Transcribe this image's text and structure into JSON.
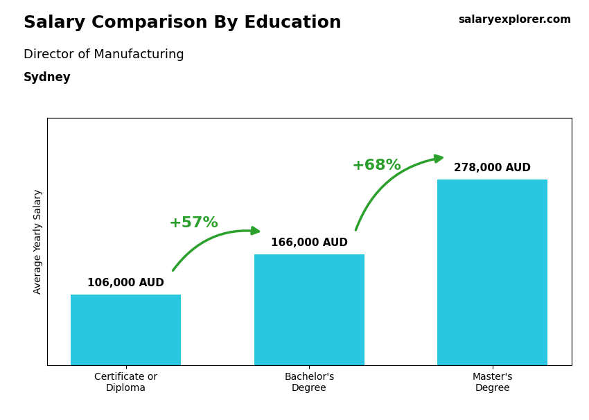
{
  "chart_data": {
    "type": "bar",
    "title": "Salary Comparison By Education",
    "subtitle": [
      "Director of Manufacturing",
      "Sydney"
    ],
    "source": "salaryexplorer.com",
    "ylabel": "Average Yearly Salary",
    "categories": [
      "Certificate or\nDiploma",
      "Bachelor's\nDegree",
      "Master's\nDegree"
    ],
    "values": [
      106000,
      166000,
      278000
    ],
    "value_labels": [
      "106,000 AUD",
      "166,000 AUD",
      "278,000 AUD"
    ],
    "data_labels": true,
    "annotations": [
      "+57%",
      "+68%"
    ],
    "color": "#29c8e0",
    "ylim": [
      0,
      370000
    ],
    "tick_labels": "x",
    "grid": false
  }
}
